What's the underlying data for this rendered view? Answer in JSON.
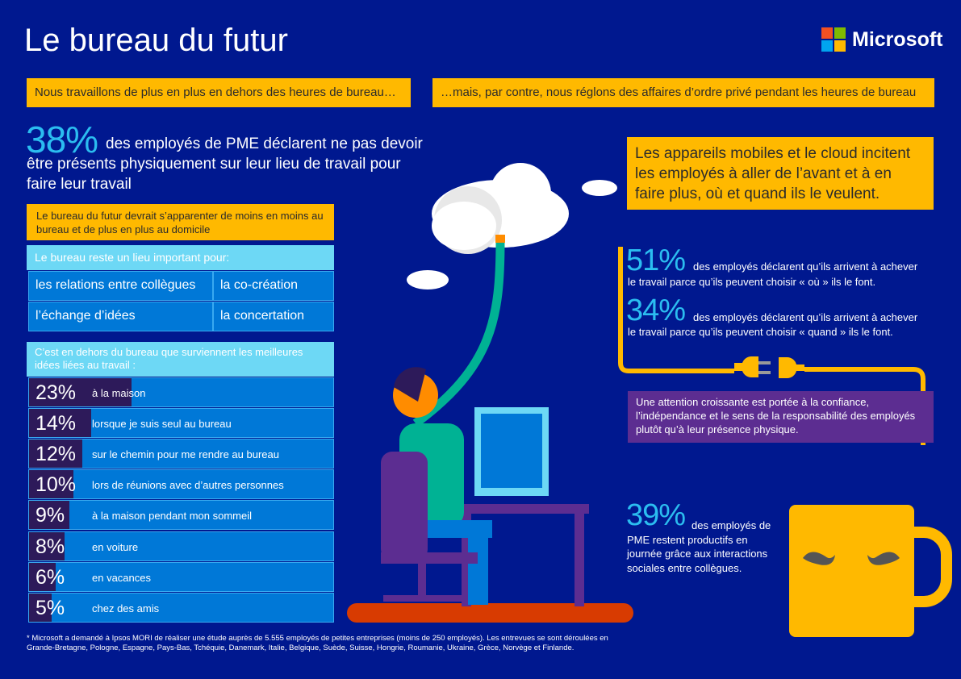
{
  "title": "Le bureau du futur",
  "brand": {
    "name": "Microsoft",
    "colors": [
      "#f25022",
      "#7fba00",
      "#00a4ef",
      "#ffb900"
    ]
  },
  "banners": {
    "left": "Nous travaillons de plus en plus en dehors des heures de bureau…",
    "right": "…mais, par contre, nous réglons des affaires d’ordre privé pendant les heures de bureau"
  },
  "stat38": {
    "value": "38%",
    "text": "des employés de PME déclarent ne pas devoir être présents physiquement sur leur lieu de travail pour faire leur travail"
  },
  "future_note": "Le bureau du futur devrait s’apparenter de moins en moins au bureau et de plus en plus au domicile",
  "office_important": {
    "header": "Le bureau reste un lieu important pour:",
    "items": [
      "les relations entre collègues",
      "la co-création",
      "l’échange d’idées",
      "la concertation"
    ]
  },
  "ideas": {
    "header": "C’est en dehors du bureau que surviennent les meilleures idées liées au travail :",
    "rows": [
      {
        "pct": "23%",
        "value": 23,
        "label": "à la maison"
      },
      {
        "pct": "14%",
        "value": 14,
        "label": "lorsque je suis seul au bureau"
      },
      {
        "pct": "12%",
        "value": 12,
        "label": "sur le chemin pour me rendre au bureau"
      },
      {
        "pct": "10%",
        "value": 10,
        "label": "lors de réunions avec d’autres personnes"
      },
      {
        "pct": "9%",
        "value": 9,
        "label": "à la maison pendant mon sommeil"
      },
      {
        "pct": "8%",
        "value": 8,
        "label": "en voiture"
      },
      {
        "pct": "6%",
        "value": 6,
        "label": "en vacances"
      },
      {
        "pct": "5%",
        "value": 5,
        "label": "chez des amis"
      }
    ]
  },
  "mobile_box": "Les appareils mobiles et le cloud incitent les employés à aller de l’avant et à en faire plus, où et quand ils le veulent.",
  "stat51": {
    "value": "51%",
    "line1": "des employés déclarent qu’ils arrivent à achever",
    "line2": "le travail parce qu’ils peuvent choisir « où » ils le font."
  },
  "stat34": {
    "value": "34%",
    "line1": "des employés déclarent qu’ils arrivent à achever",
    "line2": "le travail parce qu’ils peuvent choisir « quand » ils le font."
  },
  "trust_box": "Une attention croissante est portée à la confiance, l’indépendance et le sens de la responsabilité des employés plutôt qu’à leur présence physique.",
  "stat39": {
    "value": "39%",
    "text": "des employés de PME restent productifs en journée grâce aux interactions sociales entre collègues."
  },
  "footnote": "* Microsoft a demandé à Ipsos MORI de réaliser une étude auprès de 5.555 employés de petites entreprises (moins de 250 employés). Les entrevues se sont déroulées en Grande-Bretagne, Pologne, Espagne, Pays-Bas, Tchéquie, Danemark, Italie, Belgique, Suède, Suisse, Hongrie, Roumanie, Ukraine, Grèce, Norvège et Finlande."
}
